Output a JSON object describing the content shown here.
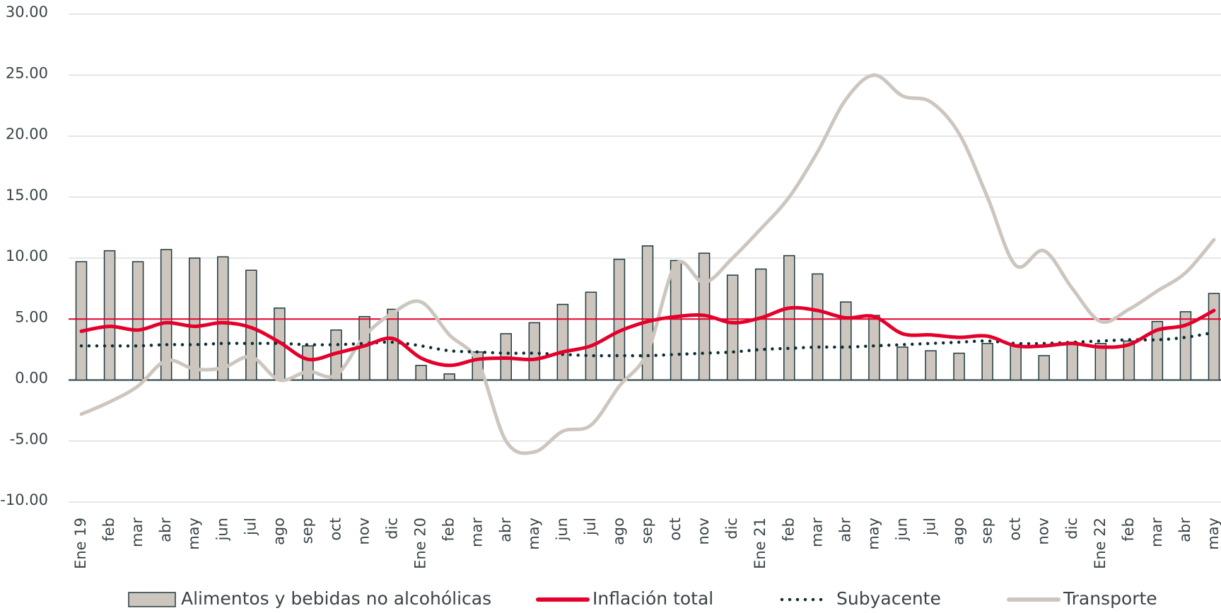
{
  "chart_data": {
    "type": "combo",
    "categories": [
      "Ene 19",
      "feb",
      "mar",
      "abr",
      "may",
      "jun",
      "jul",
      "ago",
      "sep",
      "oct",
      "nov",
      "dic",
      "Ene 20",
      "feb",
      "mar",
      "abr",
      "may",
      "jun",
      "jul",
      "ago",
      "sep",
      "oct",
      "nov",
      "dic",
      "Ene 21",
      "feb",
      "mar",
      "abr",
      "may",
      "jun",
      "jul",
      "ago",
      "sep",
      "oct",
      "nov",
      "dic",
      "Ene 22",
      "feb",
      "mar",
      "abr",
      "may"
    ],
    "series": [
      {
        "name": "Alimentos y bebidas no alcohólicas",
        "kind": "bar",
        "color": "#cdc6bf",
        "edge": "#1f3a3d",
        "values": [
          9.7,
          10.6,
          9.7,
          10.7,
          10.0,
          10.1,
          9.0,
          5.9,
          2.8,
          4.1,
          5.2,
          5.8,
          1.2,
          0.5,
          2.3,
          3.8,
          4.7,
          6.2,
          7.2,
          9.9,
          11.0,
          9.8,
          10.4,
          8.6,
          9.1,
          10.2,
          8.7,
          6.4,
          5.3,
          2.7,
          2.4,
          2.2,
          3.0,
          2.9,
          2.0,
          3.1,
          3.0,
          3.2,
          4.8,
          5.6,
          7.1
        ]
      },
      {
        "name": "Inflación total",
        "kind": "line",
        "color": "#e4002b",
        "values": [
          4.0,
          4.4,
          4.1,
          4.7,
          4.4,
          4.7,
          4.3,
          3.1,
          1.7,
          2.2,
          2.8,
          3.4,
          1.8,
          1.2,
          1.7,
          1.8,
          1.7,
          2.3,
          2.8,
          4.0,
          4.8,
          5.2,
          5.3,
          4.7,
          5.1,
          5.9,
          5.7,
          5.1,
          5.2,
          3.8,
          3.7,
          3.5,
          3.6,
          2.8,
          2.8,
          3.0,
          2.7,
          2.9,
          4.1,
          4.5,
          5.7
        ]
      },
      {
        "name": "Subyacente",
        "kind": "dotted",
        "color": "#0f2e33",
        "values": [
          2.8,
          2.8,
          2.8,
          2.9,
          2.9,
          3.0,
          3.0,
          3.0,
          2.9,
          2.9,
          3.0,
          3.1,
          2.8,
          2.4,
          2.3,
          2.2,
          2.2,
          2.1,
          2.0,
          2.0,
          2.0,
          2.1,
          2.2,
          2.3,
          2.5,
          2.6,
          2.7,
          2.7,
          2.8,
          2.9,
          3.0,
          3.1,
          3.2,
          3.0,
          3.0,
          3.1,
          3.2,
          3.3,
          3.3,
          3.5,
          3.9
        ]
      },
      {
        "name": "Transporte",
        "kind": "line",
        "color": "#cdc6bf",
        "values": [
          -2.8,
          -1.8,
          -0.5,
          1.6,
          0.9,
          1.0,
          1.9,
          0.0,
          0.7,
          0.4,
          3.6,
          5.5,
          6.4,
          3.7,
          1.5,
          -5.0,
          -5.9,
          -4.2,
          -3.7,
          -0.5,
          2.3,
          9.5,
          8.0,
          10.0,
          12.4,
          15.0,
          18.7,
          23.0,
          25.0,
          23.3,
          22.8,
          20.2,
          15.0,
          9.4,
          10.6,
          7.5,
          4.8,
          5.8,
          7.3,
          8.8,
          11.5
        ]
      }
    ],
    "reference_line": 5,
    "reference_color": "#e4002b",
    "ylim": [
      -10,
      30
    ],
    "yticks": [
      {
        "value": -10,
        "label": "-10.00"
      },
      {
        "value": -5,
        "label": "-5.00"
      },
      {
        "value": 0,
        "label": "0.00"
      },
      {
        "value": 5,
        "label": "5.00"
      },
      {
        "value": 10,
        "label": "10.00"
      },
      {
        "value": 15,
        "label": "15.00"
      },
      {
        "value": 20,
        "label": "20.00"
      },
      {
        "value": 25,
        "label": "25.00"
      },
      {
        "value": 30,
        "label": "30.00"
      }
    ],
    "grid": true
  }
}
